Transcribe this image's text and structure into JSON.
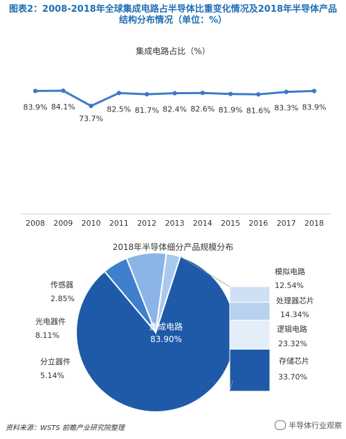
{
  "title": "图表2：2008-2018年全球集成电路占半导体比重变化情况及2018年半导体产品结构分布情况（单位：%）",
  "source": "资料来源：WSTS 前瞻产业研究院整理",
  "watermark": "半导体行业观察",
  "colors": {
    "dark": "#1e5aa8",
    "mid": "#3f7fcc",
    "light": "#8bb5e6",
    "pale": "#dbe8f7",
    "line": "#3e79c7"
  },
  "chart_data": [
    {
      "type": "line",
      "title": "集成电路占比（%）",
      "x": [
        "2008",
        "2009",
        "2010",
        "2011",
        "2012",
        "2013",
        "2014",
        "2015",
        "2016",
        "2017",
        "2018"
      ],
      "series": [
        {
          "values": [
            83.9,
            84.1,
            73.7,
            82.5,
            81.7,
            82.4,
            82.6,
            81.9,
            81.6,
            83.3,
            83.9
          ]
        }
      ],
      "value_labels": [
        "83.9%",
        "84.1%",
        "73.7%",
        "82.5%",
        "81.7%",
        "82.4%",
        "82.6%",
        "81.9%",
        "81.6%",
        "83.3%",
        "83.9%"
      ]
    },
    {
      "type": "pie",
      "title": "2018年半导体细分产品规模分布",
      "slices": [
        {
          "name": "集成电路",
          "value": 83.9,
          "label": "83.90%"
        },
        {
          "name": "分立器件",
          "value": 5.14,
          "label": "5.14%"
        },
        {
          "name": "光电器件",
          "value": 8.11,
          "label": "8.11%"
        },
        {
          "name": "传感器",
          "value": 2.85,
          "label": "2.85%"
        }
      ],
      "breakdown": [
        {
          "name": "模拟电路",
          "value": 12.54,
          "label": "12.54%"
        },
        {
          "name": "处理器芯片",
          "value": 14.34,
          "label": "14.34%"
        },
        {
          "name": "逻辑电路",
          "value": 23.32,
          "label": "23.32%"
        },
        {
          "name": "存储芯片",
          "value": 33.7,
          "label": "33.70%"
        }
      ]
    }
  ]
}
